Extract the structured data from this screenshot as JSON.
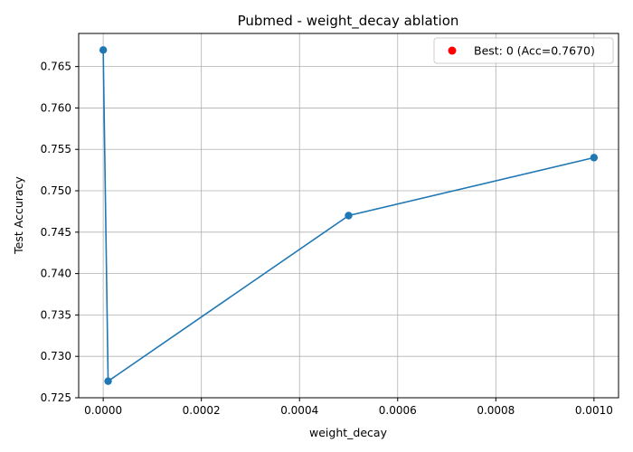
{
  "chart_data": {
    "type": "line",
    "title": "Pubmed - weight_decay ablation",
    "xlabel": "weight_decay",
    "ylabel": "Test Accuracy",
    "grid": true,
    "legend_position": "upper right",
    "xlim": [
      -5e-05,
      0.00105
    ],
    "ylim": [
      0.725,
      0.769
    ],
    "xticks": [
      0.0,
      0.0002,
      0.0004,
      0.0006,
      0.0008,
      0.001
    ],
    "xtick_labels": [
      "0.0000",
      "0.0002",
      "0.0004",
      "0.0006",
      "0.0008",
      "0.0010"
    ],
    "yticks": [
      0.725,
      0.73,
      0.735,
      0.74,
      0.745,
      0.75,
      0.755,
      0.76,
      0.765
    ],
    "ytick_labels": [
      "0.725",
      "0.730",
      "0.735",
      "0.740",
      "0.745",
      "0.750",
      "0.755",
      "0.760",
      "0.765"
    ],
    "series": [
      {
        "color": "#1f77b4",
        "x": [
          0.0,
          1e-05,
          0.0005,
          0.001
        ],
        "y": [
          0.767,
          0.727,
          0.747,
          0.754
        ]
      }
    ],
    "best_point": {
      "label": "Best: 0 (Acc=0.7670)",
      "x": 0.0,
      "y": 0.767,
      "color": "#ff0000"
    }
  }
}
